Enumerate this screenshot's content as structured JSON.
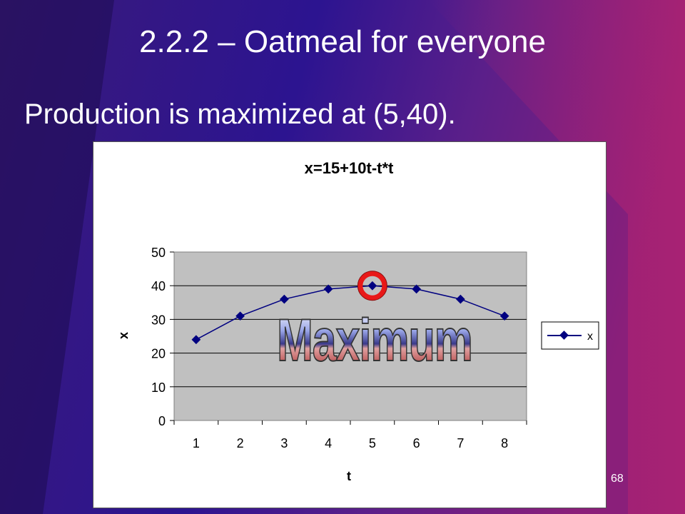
{
  "slide": {
    "title": "2.2.2 – Oatmeal for everyone",
    "subtitle": "Production is maximized at (5,40).",
    "page_number": "68"
  },
  "colors": {
    "series": "#000080",
    "plot_area": "#c0c0c0",
    "highlight_ring": "#e81818"
  },
  "chart_data": {
    "type": "line",
    "title": "x=15+10t-t*t",
    "xlabel": "t",
    "ylabel": "x",
    "categories": [
      "1",
      "2",
      "3",
      "4",
      "5",
      "6",
      "7",
      "8"
    ],
    "series": [
      {
        "name": "x",
        "values": [
          24,
          31,
          36,
          39,
          40,
          39,
          36,
          31
        ]
      }
    ],
    "ylim": [
      0,
      50
    ],
    "yticks": [
      "0",
      "10",
      "20",
      "30",
      "40",
      "50"
    ],
    "grid": true,
    "legend": "right",
    "highlight_index": 4,
    "annotation": "Maximum"
  }
}
